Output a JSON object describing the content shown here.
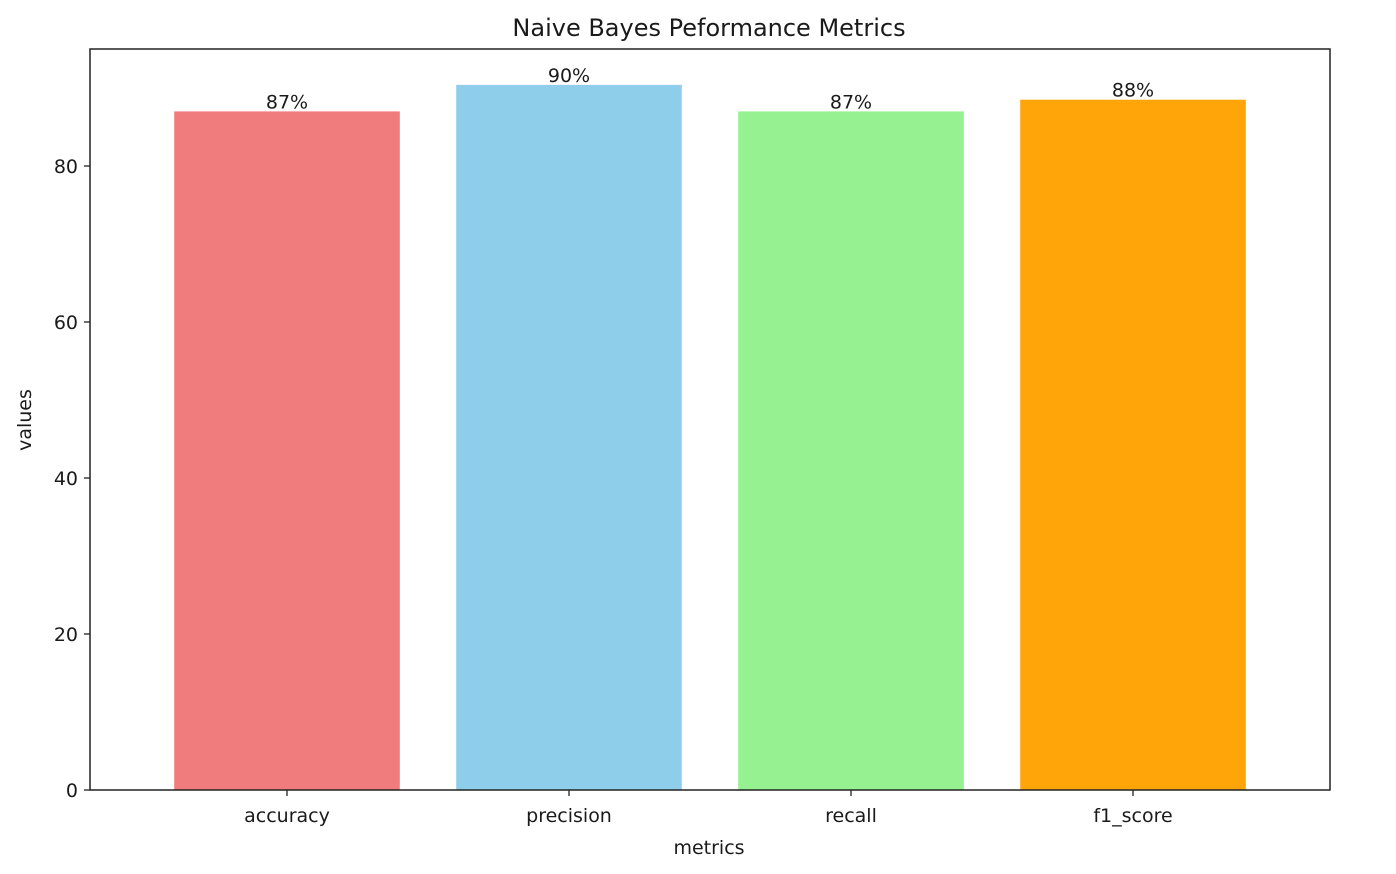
{
  "chart_data": {
    "type": "bar",
    "title": "Naive Bayes Peformance Metrics",
    "xlabel": "metrics",
    "ylabel": "values",
    "categories": [
      "accuracy",
      "precision",
      "recall",
      "f1_score"
    ],
    "values": [
      87,
      90.4,
      87,
      88.5
    ],
    "data_labels": [
      "87%",
      "90%",
      "87%",
      "88%"
    ],
    "colors": [
      "#F07C7E",
      "#8ECEEA",
      "#96F290",
      "#FFA509"
    ],
    "ylim": [
      0,
      95
    ],
    "yticks": [
      0,
      20,
      40,
      60,
      80
    ],
    "grid": false,
    "legend": "none"
  }
}
